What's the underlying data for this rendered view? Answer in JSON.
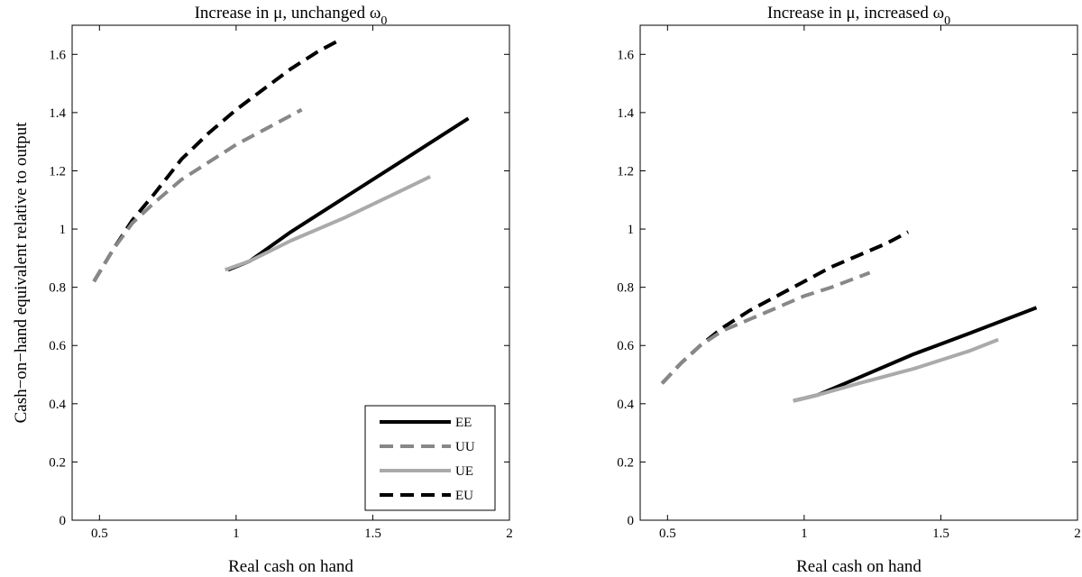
{
  "chart_data": [
    {
      "type": "line",
      "title": "Increase in μ, unchanged ω",
      "title_subscript": "0",
      "xlabel": "Real cash on hand",
      "ylabel": "Cash−on−hand equivalent relative to output",
      "xlim": [
        0.4,
        2
      ],
      "ylim": [
        0,
        1.7
      ],
      "xticks": [
        0.5,
        1,
        1.5,
        2
      ],
      "xtick_labels": [
        "0.5",
        "1",
        "1.5",
        "2"
      ],
      "yticks": [
        0,
        0.2,
        0.4,
        0.6,
        0.8,
        1,
        1.2,
        1.4,
        1.6
      ],
      "ytick_labels": [
        "0",
        "0.2",
        "0.4",
        "0.6",
        "0.8",
        "1",
        "1.2",
        "1.4",
        "1.6"
      ],
      "grid": false,
      "legend": "bottom-right",
      "series": [
        {
          "name": "EU",
          "color": "#000000",
          "dash": "dashed",
          "x": [
            0.48,
            0.55,
            0.62,
            0.7,
            0.8,
            0.9,
            1.0,
            1.1,
            1.2,
            1.3,
            1.38
          ],
          "y": [
            0.82,
            0.93,
            1.03,
            1.12,
            1.24,
            1.33,
            1.41,
            1.48,
            1.55,
            1.61,
            1.65
          ]
        },
        {
          "name": "UU",
          "color": "#888888",
          "dash": "dashed",
          "x": [
            0.48,
            0.55,
            0.62,
            0.7,
            0.8,
            0.9,
            1.0,
            1.1,
            1.24
          ],
          "y": [
            0.82,
            0.93,
            1.02,
            1.09,
            1.17,
            1.23,
            1.29,
            1.34,
            1.41
          ]
        },
        {
          "name": "EE",
          "color": "#000000",
          "dash": "solid",
          "x": [
            0.97,
            1.05,
            1.2,
            1.4,
            1.6,
            1.85
          ],
          "y": [
            0.86,
            0.89,
            0.99,
            1.11,
            1.23,
            1.38
          ]
        },
        {
          "name": "UE",
          "color": "#aaaaaa",
          "dash": "solid",
          "x": [
            0.96,
            1.05,
            1.2,
            1.4,
            1.6,
            1.71
          ],
          "y": [
            0.86,
            0.89,
            0.96,
            1.04,
            1.13,
            1.18
          ]
        }
      ]
    },
    {
      "type": "line",
      "title": "Increase in μ, increased ω",
      "title_subscript": "0",
      "xlabel": "Real cash on hand",
      "ylabel": "",
      "xlim": [
        0.4,
        2
      ],
      "ylim": [
        0,
        1.7
      ],
      "xticks": [
        0.5,
        1,
        1.5,
        2
      ],
      "xtick_labels": [
        "0.5",
        "1",
        "1.5",
        "2"
      ],
      "yticks": [
        0,
        0.2,
        0.4,
        0.6,
        0.8,
        1,
        1.2,
        1.4,
        1.6
      ],
      "ytick_labels": [
        "0",
        "0.2",
        "0.4",
        "0.6",
        "0.8",
        "1",
        "1.2",
        "1.4",
        "1.6"
      ],
      "grid": false,
      "series": [
        {
          "name": "EU",
          "color": "#000000",
          "dash": "dashed",
          "x": [
            0.48,
            0.55,
            0.62,
            0.7,
            0.8,
            0.9,
            1.0,
            1.1,
            1.2,
            1.3,
            1.38
          ],
          "y": [
            0.47,
            0.54,
            0.6,
            0.66,
            0.72,
            0.77,
            0.82,
            0.87,
            0.91,
            0.95,
            0.99
          ]
        },
        {
          "name": "UU",
          "color": "#888888",
          "dash": "dashed",
          "x": [
            0.48,
            0.55,
            0.62,
            0.7,
            0.8,
            0.9,
            1.0,
            1.1,
            1.24
          ],
          "y": [
            0.47,
            0.54,
            0.6,
            0.65,
            0.69,
            0.73,
            0.77,
            0.8,
            0.85
          ]
        },
        {
          "name": "EE",
          "color": "#000000",
          "dash": "solid",
          "x": [
            0.96,
            1.05,
            1.2,
            1.4,
            1.6,
            1.85
          ],
          "y": [
            0.41,
            0.43,
            0.49,
            0.57,
            0.64,
            0.73
          ]
        },
        {
          "name": "UE",
          "color": "#aaaaaa",
          "dash": "solid",
          "x": [
            0.96,
            1.05,
            1.2,
            1.4,
            1.6,
            1.71
          ],
          "y": [
            0.41,
            0.43,
            0.47,
            0.52,
            0.58,
            0.62
          ]
        }
      ]
    }
  ],
  "legend_order": [
    "EE",
    "UU",
    "UE",
    "EU"
  ]
}
